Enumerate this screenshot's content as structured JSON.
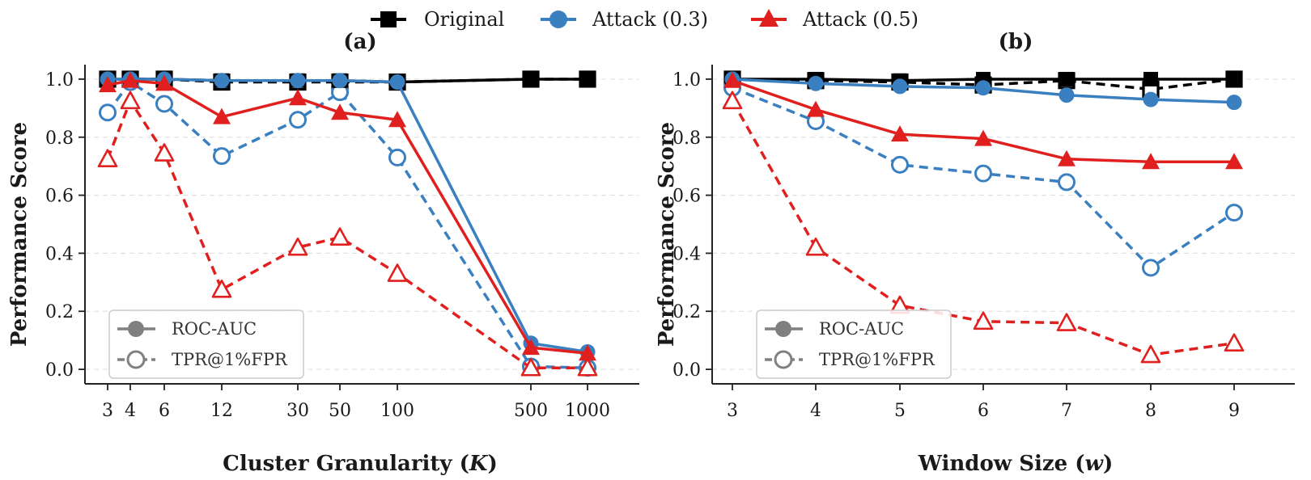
{
  "legend": {
    "entries": [
      {
        "label": "Original",
        "color": "#000000",
        "marker": "square"
      },
      {
        "label": "Attack (0.3)",
        "color": "#3a7fc0",
        "marker": "circle"
      },
      {
        "label": "Attack (0.5)",
        "color": "#e0201f",
        "marker": "triangle"
      }
    ]
  },
  "inner_legend": {
    "solid_label": "ROC-AUC",
    "dashed_label": "TPR@1%FPR",
    "color": "#808080"
  },
  "chart_data": [
    {
      "type": "line",
      "title": "(a)",
      "xlabel_prefix": "Cluster Granularity (",
      "xlabel_var": "K",
      "xlabel_suffix": ")",
      "ylabel": "Performance Score",
      "x_scale": "categorical",
      "x_ticks": [
        "3",
        "4",
        "6",
        "12",
        "30",
        "50",
        "100",
        "500",
        "1000"
      ],
      "ylim": [
        -0.05,
        1.05
      ],
      "y_ticks": [
        "0.0",
        "0.2",
        "0.4",
        "0.6",
        "0.8",
        "1.0"
      ],
      "grid": "horizontal-dashed",
      "legend_position": "lower-left",
      "series": [
        {
          "name": "Original",
          "metric": "ROC-AUC",
          "style": "solid",
          "color": "#000000",
          "marker": "square",
          "filled": true,
          "values": [
            1.0,
            1.0,
            1.0,
            0.995,
            0.995,
            0.995,
            0.99,
            1.0,
            1.0
          ]
        },
        {
          "name": "Original",
          "metric": "TPR@1%FPR",
          "style": "dashed",
          "color": "#000000",
          "marker": "square",
          "filled": false,
          "values": [
            1.0,
            1.0,
            1.0,
            0.99,
            0.99,
            0.99,
            0.99,
            1.0,
            1.0
          ]
        },
        {
          "name": "Attack (0.3)",
          "metric": "ROC-AUC",
          "style": "solid",
          "color": "#3a7fc0",
          "marker": "circle",
          "filled": true,
          "values": [
            1.0,
            1.0,
            1.0,
            0.995,
            0.995,
            0.995,
            0.99,
            0.09,
            0.06
          ]
        },
        {
          "name": "Attack (0.3)",
          "metric": "TPR@1%FPR",
          "style": "dashed",
          "color": "#3a7fc0",
          "marker": "circle",
          "filled": false,
          "values": [
            0.885,
            0.99,
            0.915,
            0.735,
            0.86,
            0.955,
            0.73,
            0.01,
            0.005
          ]
        },
        {
          "name": "Attack (0.5)",
          "metric": "ROC-AUC",
          "style": "solid",
          "color": "#e0201f",
          "marker": "triangle",
          "filled": true,
          "values": [
            0.98,
            0.995,
            0.985,
            0.87,
            0.935,
            0.885,
            0.86,
            0.075,
            0.055
          ]
        },
        {
          "name": "Attack (0.5)",
          "metric": "TPR@1%FPR",
          "style": "dashed",
          "color": "#e0201f",
          "marker": "triangle",
          "filled": false,
          "values": [
            0.725,
            0.925,
            0.745,
            0.275,
            0.42,
            0.455,
            0.33,
            0.005,
            0.005
          ]
        }
      ]
    },
    {
      "type": "line",
      "title": "(b)",
      "xlabel_prefix": "Window Size (",
      "xlabel_var": "w",
      "xlabel_suffix": ")",
      "ylabel": "Performance Score",
      "x_scale": "categorical",
      "x_ticks": [
        "3",
        "4",
        "5",
        "6",
        "7",
        "8",
        "9"
      ],
      "ylim": [
        -0.05,
        1.05
      ],
      "y_ticks": [
        "0.0",
        "0.2",
        "0.4",
        "0.6",
        "0.8",
        "1.0"
      ],
      "grid": "horizontal-dashed",
      "legend_position": "lower-left",
      "series": [
        {
          "name": "Original",
          "metric": "ROC-AUC",
          "style": "solid",
          "color": "#000000",
          "marker": "square",
          "filled": true,
          "values": [
            1.0,
            1.0,
            0.995,
            1.0,
            1.0,
            1.0,
            1.0
          ]
        },
        {
          "name": "Original",
          "metric": "TPR@1%FPR",
          "style": "dashed",
          "color": "#000000",
          "marker": "square",
          "filled": false,
          "values": [
            1.0,
            0.995,
            0.99,
            0.98,
            0.995,
            0.965,
            1.0
          ]
        },
        {
          "name": "Attack (0.3)",
          "metric": "ROC-AUC",
          "style": "solid",
          "color": "#3a7fc0",
          "marker": "circle",
          "filled": true,
          "values": [
            1.0,
            0.985,
            0.975,
            0.97,
            0.945,
            0.93,
            0.92
          ]
        },
        {
          "name": "Attack (0.3)",
          "metric": "TPR@1%FPR",
          "style": "dashed",
          "color": "#3a7fc0",
          "marker": "circle",
          "filled": false,
          "values": [
            0.97,
            0.855,
            0.705,
            0.675,
            0.645,
            0.35,
            0.54
          ]
        },
        {
          "name": "Attack (0.5)",
          "metric": "ROC-AUC",
          "style": "solid",
          "color": "#e0201f",
          "marker": "triangle",
          "filled": true,
          "values": [
            0.995,
            0.895,
            0.81,
            0.795,
            0.725,
            0.715,
            0.715
          ]
        },
        {
          "name": "Attack (0.5)",
          "metric": "TPR@1%FPR",
          "style": "dashed",
          "color": "#e0201f",
          "marker": "triangle",
          "filled": false,
          "values": [
            0.925,
            0.42,
            0.22,
            0.165,
            0.16,
            0.05,
            0.09
          ]
        }
      ]
    }
  ]
}
